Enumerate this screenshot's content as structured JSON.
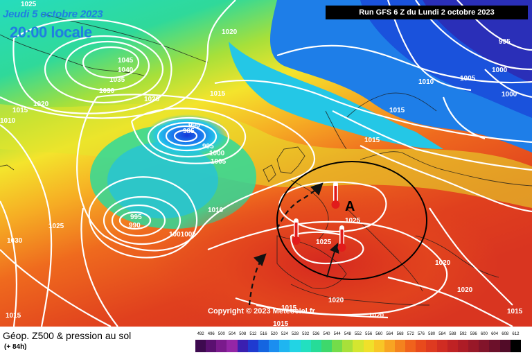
{
  "header": {
    "date": "Jeudi 5 octobre 2023",
    "time": "20:00 locale",
    "run": "Run GFS 6 Z du Lundi 2 octobre 2023"
  },
  "copyright": "Copyright © 2023 Meteociel.fr",
  "footer": {
    "title": "Géop. Z500 & pression au sol",
    "subtitle": "(+ 84h)"
  },
  "pressure_labels": [
    "1025",
    "1020",
    "1045",
    "1040",
    "1035",
    "1030",
    "1015",
    "1020",
    "1010",
    "1015",
    "990",
    "985",
    "995",
    "1000",
    "1005",
    "1020",
    "1015",
    "995",
    "1005",
    "1000",
    "1000",
    "1010",
    "1015",
    "1025",
    "995",
    "990",
    "1010",
    "1001005",
    "1025",
    "1025",
    "1030",
    "1020",
    "1020",
    "1020",
    "1015",
    "1015",
    "1015",
    "1020",
    "1015"
  ],
  "high_marker": "A",
  "scale": {
    "labels": [
      "492",
      "496",
      "500",
      "504",
      "508",
      "512",
      "516",
      "520",
      "524",
      "528",
      "532",
      "536",
      "540",
      "544",
      "548",
      "552",
      "556",
      "560",
      "564",
      "568",
      "572",
      "576",
      "580",
      "584",
      "588",
      "592",
      "596",
      "600",
      "604",
      "608",
      "612"
    ],
    "colors": [
      "#3d0a4f",
      "#5a1070",
      "#7a1a8c",
      "#9426a6",
      "#3a1fb0",
      "#1f3ad0",
      "#1565e0",
      "#1b8ef0",
      "#1fb5f0",
      "#22d4e4",
      "#22e0c0",
      "#26dc98",
      "#3ed86c",
      "#74dc4a",
      "#a8e03a",
      "#d4e630",
      "#f0e02a",
      "#f8c626",
      "#f8a422",
      "#f4821e",
      "#f0621c",
      "#e84a1c",
      "#de3a20",
      "#d02c22",
      "#bf2224",
      "#ad1c26",
      "#981828",
      "#82142a",
      "#6c102a",
      "#520c28",
      "#000000"
    ]
  },
  "colors": {
    "title_blue": "#1f7fe0",
    "isobar": "#ffffff",
    "anticyclone_outline": "#000000",
    "thermometer": "#e21b1b"
  }
}
